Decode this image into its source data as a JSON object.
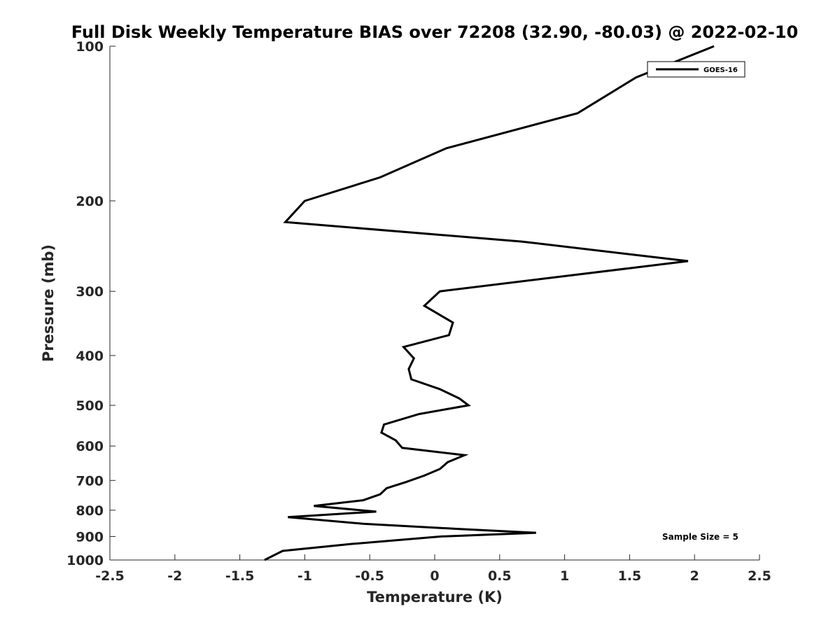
{
  "chart_data": {
    "type": "line",
    "title": "Full Disk Weekly Temperature BIAS over 72208 (32.90, -80.03) @ 2022-02-10",
    "xlabel": "Temperature (K)",
    "ylabel": "Pressure (mb)",
    "xlim": [
      -2.5,
      2.5
    ],
    "ylim": [
      100,
      1000
    ],
    "y_scale": "log",
    "y_reversed": true,
    "grid": false,
    "x_ticks": [
      -2.5,
      -2,
      -1.5,
      -1,
      -0.5,
      0,
      0.5,
      1,
      1.5,
      2,
      2.5
    ],
    "x_tick_labels": [
      "-2.5",
      "-2",
      "-1.5",
      "-1",
      "-0.5",
      "0",
      "0.5",
      "1",
      "1.5",
      "2",
      "2.5"
    ],
    "y_ticks": [
      100,
      200,
      300,
      400,
      500,
      600,
      700,
      800,
      900,
      1000
    ],
    "y_tick_labels": [
      "100",
      "200",
      "300",
      "400",
      "500",
      "600",
      "700",
      "800",
      "900",
      "1000"
    ],
    "legend_position": "top-right",
    "series": [
      {
        "name": "GOES-16",
        "color": "#000000",
        "points": [
          {
            "x": 2.15,
            "y": 100
          },
          {
            "x": 1.55,
            "y": 115
          },
          {
            "x": 1.1,
            "y": 135
          },
          {
            "x": 0.09,
            "y": 158
          },
          {
            "x": -0.42,
            "y": 180
          },
          {
            "x": -1.0,
            "y": 200
          },
          {
            "x": -1.15,
            "y": 220
          },
          {
            "x": 0.67,
            "y": 240
          },
          {
            "x": 1.95,
            "y": 262
          },
          {
            "x": 0.04,
            "y": 300
          },
          {
            "x": -0.08,
            "y": 320
          },
          {
            "x": 0.14,
            "y": 345
          },
          {
            "x": 0.11,
            "y": 365
          },
          {
            "x": -0.24,
            "y": 385
          },
          {
            "x": -0.16,
            "y": 405
          },
          {
            "x": -0.2,
            "y": 425
          },
          {
            "x": -0.18,
            "y": 445
          },
          {
            "x": 0.04,
            "y": 465
          },
          {
            "x": 0.19,
            "y": 485
          },
          {
            "x": 0.26,
            "y": 500
          },
          {
            "x": -0.12,
            "y": 520
          },
          {
            "x": -0.39,
            "y": 545
          },
          {
            "x": -0.41,
            "y": 565
          },
          {
            "x": -0.3,
            "y": 585
          },
          {
            "x": -0.25,
            "y": 605
          },
          {
            "x": 0.23,
            "y": 625
          },
          {
            "x": 0.1,
            "y": 645
          },
          {
            "x": 0.04,
            "y": 665
          },
          {
            "x": -0.08,
            "y": 685
          },
          {
            "x": -0.22,
            "y": 705
          },
          {
            "x": -0.37,
            "y": 725
          },
          {
            "x": -0.42,
            "y": 745
          },
          {
            "x": -0.55,
            "y": 765
          },
          {
            "x": -0.93,
            "y": 785
          },
          {
            "x": -0.45,
            "y": 805
          },
          {
            "x": -1.13,
            "y": 825
          },
          {
            "x": -0.55,
            "y": 850
          },
          {
            "x": 0.18,
            "y": 870
          },
          {
            "x": 0.78,
            "y": 885
          },
          {
            "x": 0.05,
            "y": 900
          },
          {
            "x": -0.63,
            "y": 930
          },
          {
            "x": -1.17,
            "y": 960
          },
          {
            "x": -1.31,
            "y": 1000
          }
        ]
      }
    ],
    "annotations": [
      "Sample Size = 5"
    ]
  }
}
